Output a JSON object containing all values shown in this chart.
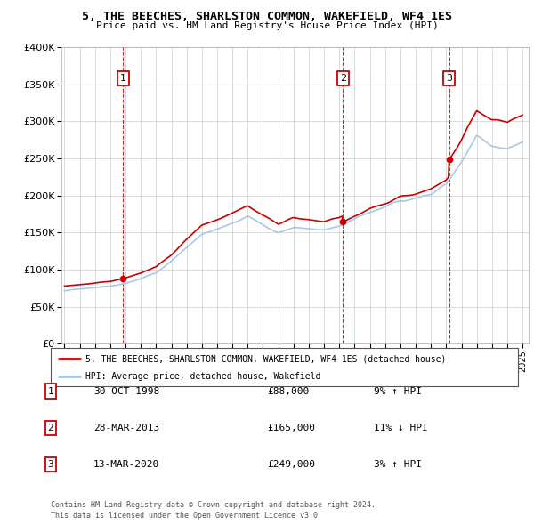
{
  "title": "5, THE BEECHES, SHARLSTON COMMON, WAKEFIELD, WF4 1ES",
  "subtitle": "Price paid vs. HM Land Registry's House Price Index (HPI)",
  "legend_label_red": "5, THE BEECHES, SHARLSTON COMMON, WAKEFIELD, WF4 1ES (detached house)",
  "legend_label_blue": "HPI: Average price, detached house, Wakefield",
  "sales": [
    {
      "num": 1,
      "date": 1998.83,
      "price": 88000,
      "label": "30-OCT-1998",
      "price_label": "£88,000",
      "hpi_label": "9% ↑ HPI"
    },
    {
      "num": 2,
      "date": 2013.23,
      "price": 165000,
      "label": "28-MAR-2013",
      "price_label": "£165,000",
      "hpi_label": "11% ↓ HPI"
    },
    {
      "num": 3,
      "date": 2020.19,
      "price": 249000,
      "label": "13-MAR-2020",
      "price_label": "£249,000",
      "hpi_label": "3% ↑ HPI"
    }
  ],
  "footer1": "Contains HM Land Registry data © Crown copyright and database right 2024.",
  "footer2": "This data is licensed under the Open Government Licence v3.0.",
  "ylim": [
    0,
    400000
  ],
  "xlim": [
    1994.8,
    2025.4
  ],
  "red_color": "#cc0000",
  "blue_color": "#a8c8e8",
  "vline_color": "#cc0000",
  "grid_color": "#cccccc",
  "background_color": "#ffffff",
  "years_hpi": [
    1995,
    1996,
    1997,
    1998,
    1999,
    2000,
    2001,
    2002,
    2003,
    2004,
    2005,
    2006,
    2007,
    2008,
    2009,
    2010,
    2011,
    2012,
    2013,
    2014,
    2015,
    2016,
    2017,
    2018,
    2019,
    2020,
    2021,
    2022,
    2023,
    2024,
    2025
  ],
  "hpi_values": [
    72000,
    74000,
    76000,
    78000,
    82000,
    88000,
    96000,
    112000,
    130000,
    148000,
    155000,
    163000,
    172000,
    160000,
    150000,
    157000,
    155000,
    153000,
    158000,
    168000,
    177000,
    185000,
    193000,
    197000,
    203000,
    215000,
    245000,
    280000,
    268000,
    263000,
    272000
  ]
}
